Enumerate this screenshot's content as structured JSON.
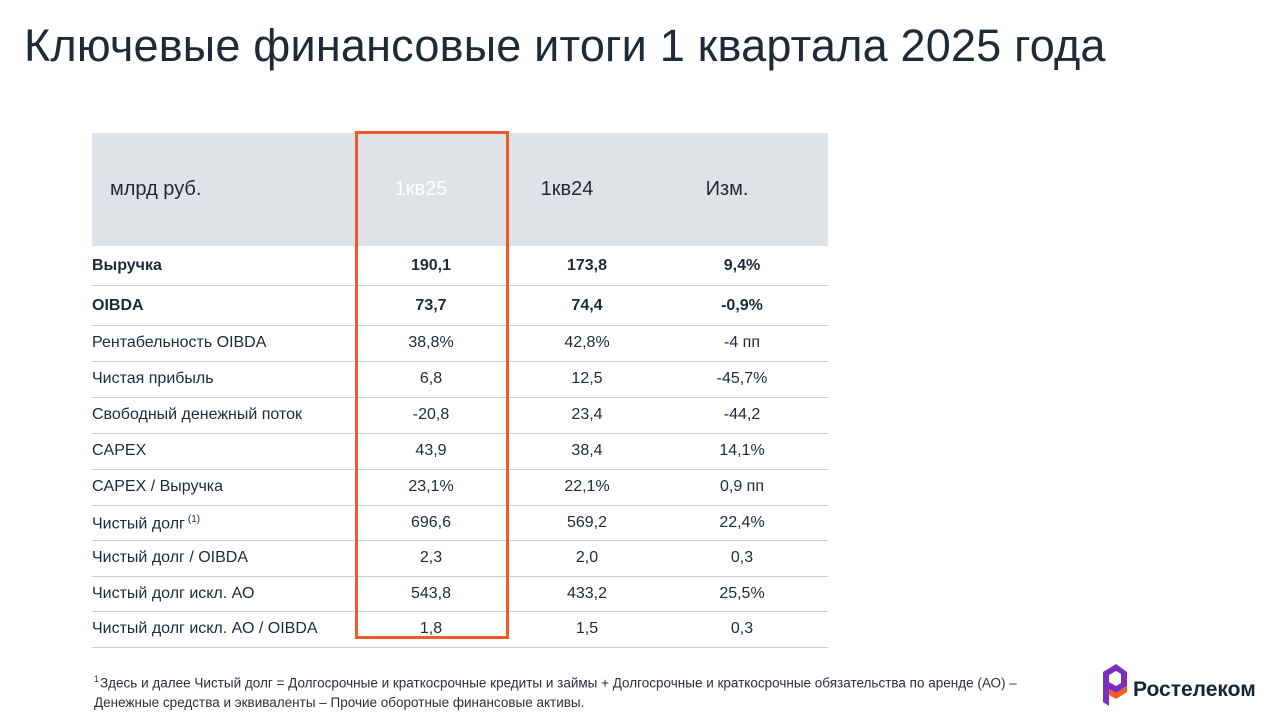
{
  "page": {
    "title": "Ключевые финансовые итоги 1 квартала 2025 года"
  },
  "table": {
    "header": {
      "label": "млрд руб.",
      "q1_25": "1кв25",
      "q1_24": "1кв24",
      "change": "Изм."
    },
    "rows": [
      {
        "label": "Выручка",
        "q1_25": "190,1",
        "q1_24": "173,8",
        "change": "9,4%",
        "bold": true
      },
      {
        "label": "OIBDA",
        "q1_25": "73,7",
        "q1_24": "74,4",
        "change": "-0,9%",
        "bold": true
      },
      {
        "label": "Рентабельность OIBDA",
        "q1_25": "38,8%",
        "q1_24": "42,8%",
        "change": "-4 пп"
      },
      {
        "label": "Чистая прибыль",
        "q1_25": "6,8",
        "q1_24": "12,5",
        "change": "-45,7%"
      },
      {
        "label": "Свободный денежный поток",
        "q1_25": "-20,8",
        "q1_24": "23,4",
        "change": "-44,2"
      },
      {
        "label": "CAPEX",
        "q1_25": "43,9",
        "q1_24": "38,4",
        "change": "14,1%"
      },
      {
        "label": "CAPEX / Выручка",
        "q1_25": "23,1%",
        "q1_24": "22,1%",
        "change": "0,9 пп"
      },
      {
        "label": "Чистый долг",
        "label_note": "(1)",
        "q1_25": "696,6",
        "q1_24": "569,2",
        "change": "22,4%"
      },
      {
        "label": "Чистый долг / OIBDA",
        "q1_25": "2,3",
        "q1_24": "2,0",
        "change": "0,3"
      },
      {
        "label": "Чистый долг искл. АО",
        "q1_25": "543,8",
        "q1_24": "433,2",
        "change": "25,5%"
      },
      {
        "label": "Чистый долг искл. АО / OIBDA",
        "q1_25": "1,8",
        "q1_24": "1,5",
        "change": "0,3"
      }
    ]
  },
  "footnote": {
    "mark": "1",
    "text": "Здесь и далее Чистый долг = Долгосрочные и краткосрочные кредиты и займы + Долгосрочные и краткосрочные обязательства по аренде (АО) – Денежные средства и эквиваленты – Прочие оборотные финансовые активы."
  },
  "logo": {
    "text": "Ростелеком",
    "icon": "rostelecom-logo-icon"
  },
  "colors": {
    "accent": "#f15a24",
    "accent_border": "#ee5a2b",
    "header_bg": "#dfe3e7",
    "logo_purple": "#7b2fbf"
  }
}
